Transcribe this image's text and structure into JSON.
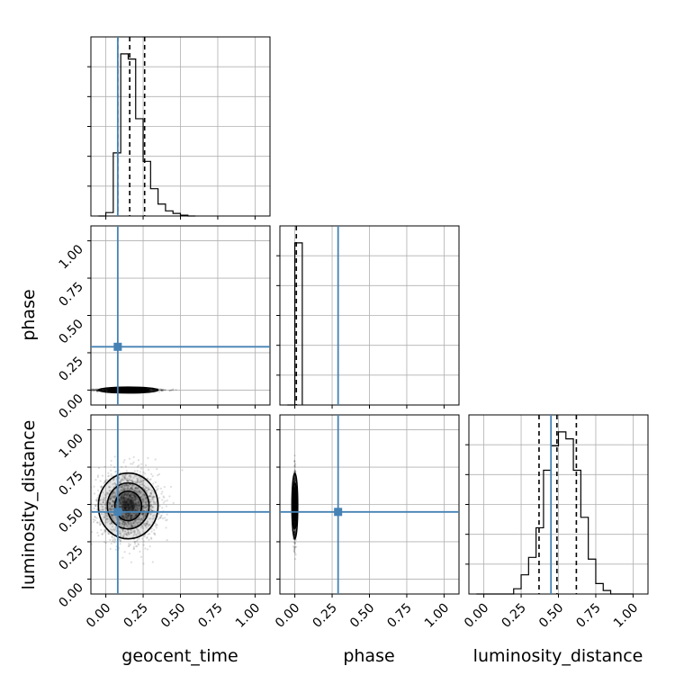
{
  "chart_data": {
    "type": "corner",
    "parameters": [
      "geocent_time",
      "phase",
      "luminosity_distance"
    ],
    "axis_range": [
      -0.1,
      1.1
    ],
    "ticks": [
      0.0,
      0.25,
      0.5,
      0.75,
      1.0
    ],
    "tick_labels": [
      "0.00",
      "0.25",
      "0.50",
      "0.75",
      "1.00"
    ],
    "truths": {
      "geocent_time": 0.08,
      "phase": 0.29,
      "luminosity_distance": 0.45
    },
    "truth_color": "#4682b4",
    "grid": true,
    "histograms": {
      "geocent_time": {
        "bin_edges": [
          -0.05,
          0.0,
          0.05,
          0.1,
          0.15,
          0.2,
          0.25,
          0.3,
          0.35,
          0.4,
          0.45,
          0.5,
          0.55,
          0.6
        ],
        "counts": [
          0.0,
          0.02,
          0.37,
          0.95,
          0.92,
          0.57,
          0.32,
          0.16,
          0.07,
          0.03,
          0.015,
          0.005,
          0.0
        ],
        "quantiles": [
          0.08,
          0.16,
          0.26
        ]
      },
      "phase": {
        "bin_edges": [
          -0.05,
          0.0,
          0.05
        ],
        "counts": [
          0.0,
          0.92
        ],
        "quantiles": [
          0.01
        ]
      },
      "luminosity_distance": {
        "bin_edges": [
          -0.05,
          0.0,
          0.05,
          0.1,
          0.15,
          0.2,
          0.25,
          0.3,
          0.35,
          0.4,
          0.45,
          0.5,
          0.55,
          0.6,
          0.65,
          0.7,
          0.75,
          0.8,
          0.85,
          0.9,
          0.95,
          1.0
        ],
        "counts": [
          0.0,
          0.0,
          0.0,
          0.0,
          0.0,
          0.03,
          0.11,
          0.21,
          0.38,
          0.71,
          0.85,
          0.93,
          0.89,
          0.71,
          0.44,
          0.2,
          0.06,
          0.02,
          0.0,
          0.0,
          0.0
        ],
        "quantiles": [
          0.37,
          0.49,
          0.62
        ]
      }
    },
    "scatter": {
      "phase_vs_geocent_time": {
        "x_mean": 0.15,
        "x_sd": 0.1,
        "y_mean": 0.0,
        "y_sd": 0.004,
        "n": 1600
      },
      "luminosity_distance_vs_geocent_time": {
        "x_mean": 0.15,
        "x_sd": 0.1,
        "y_mean": 0.49,
        "y_sd": 0.11,
        "n": 1800
      },
      "luminosity_distance_vs_phase": {
        "x_mean": 0.0,
        "x_sd": 0.004,
        "y_mean": 0.49,
        "y_sd": 0.11,
        "n": 1000
      }
    }
  }
}
